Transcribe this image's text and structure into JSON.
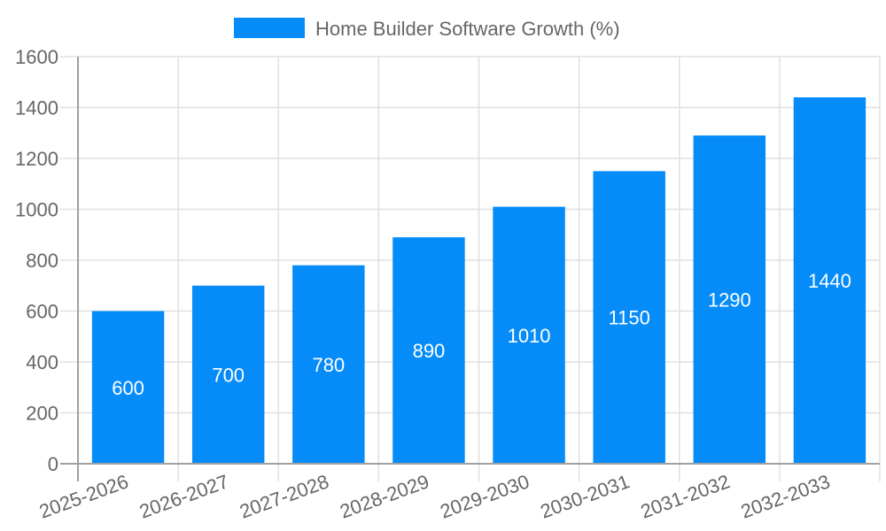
{
  "chart_data": {
    "type": "bar",
    "title": "",
    "legend": [
      {
        "label": "Home Builder Software Growth (%)",
        "color": "#068cf9"
      }
    ],
    "legend_position": "top",
    "categories": [
      "2025-2026",
      "2026-2027",
      "2027-2028",
      "2028-2029",
      "2029-2030",
      "2030-2031",
      "2031-2032",
      "2032-2033"
    ],
    "series": [
      {
        "name": "Home Builder Software Growth (%)",
        "values": [
          600,
          700,
          780,
          890,
          1010,
          1150,
          1290,
          1440
        ],
        "color": "#068cf9"
      }
    ],
    "data_labels": [
      "600",
      "700",
      "780",
      "890",
      "1010",
      "1150",
      "1290",
      "1440"
    ],
    "xlabel": "",
    "ylabel": "",
    "ylim": [
      0,
      1600
    ],
    "yticks": [
      0,
      200,
      400,
      600,
      800,
      1000,
      1200,
      1400,
      1600
    ],
    "grid": true,
    "x_tick_rotation": -20
  },
  "legend": {
    "label": "Home Builder Software Growth (%)"
  }
}
